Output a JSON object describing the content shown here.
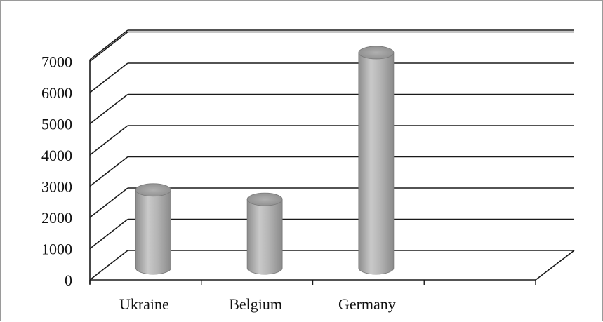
{
  "chart_data": {
    "type": "bar",
    "style": "3d-cylinder",
    "title": "",
    "xlabel": "",
    "ylabel": "",
    "categories": [
      "Ukraine",
      "Belgium",
      "Germany"
    ],
    "values": [
      2500,
      2200,
      6900
    ],
    "ylim": [
      0,
      7000
    ],
    "yticks": [
      "0",
      "1000",
      "2000",
      "3000",
      "4000",
      "5000",
      "6000",
      "7000"
    ],
    "grid": true,
    "legend": "none",
    "colors": {
      "bar": "#b3b3b3",
      "grid": "#1a1a1a"
    }
  }
}
